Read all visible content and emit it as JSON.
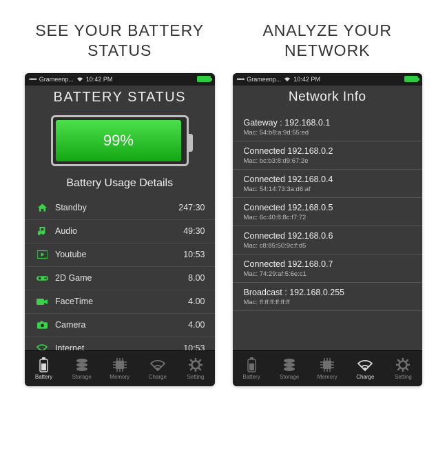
{
  "panel1": {
    "headline": "SEE YOUR BATTERY STATUS",
    "statusbar": {
      "carrier": "Grameenp...",
      "time": "10:42 PM"
    },
    "title": "BATTERY STATUS",
    "battery": {
      "percent_label": "99%",
      "fill_pct": 98
    },
    "subhead": "Battery Usage Details",
    "usage": [
      {
        "icon": "home",
        "label": "Standby",
        "value": "247:30"
      },
      {
        "icon": "note",
        "label": "Audio",
        "value": "49:30"
      },
      {
        "icon": "play",
        "label": "Youtube",
        "value": "10:53"
      },
      {
        "icon": "gamepad",
        "label": "2D Game",
        "value": "8.00"
      },
      {
        "icon": "camcord",
        "label": "FaceTime",
        "value": "4.00"
      },
      {
        "icon": "camera",
        "label": "Camera",
        "value": "4.00"
      },
      {
        "icon": "wifi",
        "label": "Internet",
        "value": "10:53"
      }
    ],
    "active_tab": 0
  },
  "panel2": {
    "headline": "ANALYZE YOUR NETWORK",
    "statusbar": {
      "carrier": "Grameenp...",
      "time": "10:42 PM"
    },
    "title": "Network Info",
    "entries": [
      {
        "line1": "Gateway : 192.168.0.1",
        "line2": "Mac: 54:b8:a:9d:55:ed"
      },
      {
        "line1": "Connected 192.168.0.2",
        "line2": "Mac: bc:b3:8:d9:67:2e"
      },
      {
        "line1": "Connected 192.168.0.4",
        "line2": "Mac: 54:14:73:3a:d6:af"
      },
      {
        "line1": "Connected 192.168.0.5",
        "line2": "Mac: 6c:40:8:8c:f7:72"
      },
      {
        "line1": "Connected 192.168.0.6",
        "line2": "Mac: c8:85:50:9c:f:d5"
      },
      {
        "line1": "Connected 192.168.0.7",
        "line2": "Mac: 74:29:af:5:6e:c1"
      },
      {
        "line1": "Broadcast : 192.168.0.255",
        "line2": "Mac: ff:ff:ff:ff:ff:ff"
      }
    ],
    "active_tab": 3
  },
  "tabs": [
    {
      "label": "Battery",
      "icon": "battery"
    },
    {
      "label": "Storage",
      "icon": "disks"
    },
    {
      "label": "Memory",
      "icon": "chip"
    },
    {
      "label": "Charge",
      "icon": "wifi"
    },
    {
      "label": "Setting",
      "icon": "gear"
    }
  ],
  "colors": {
    "accent_green": "#39d24a",
    "bg_dark": "#3a3a3a",
    "bg_black": "#1b1b1b",
    "divider": "#4a4a4a"
  }
}
